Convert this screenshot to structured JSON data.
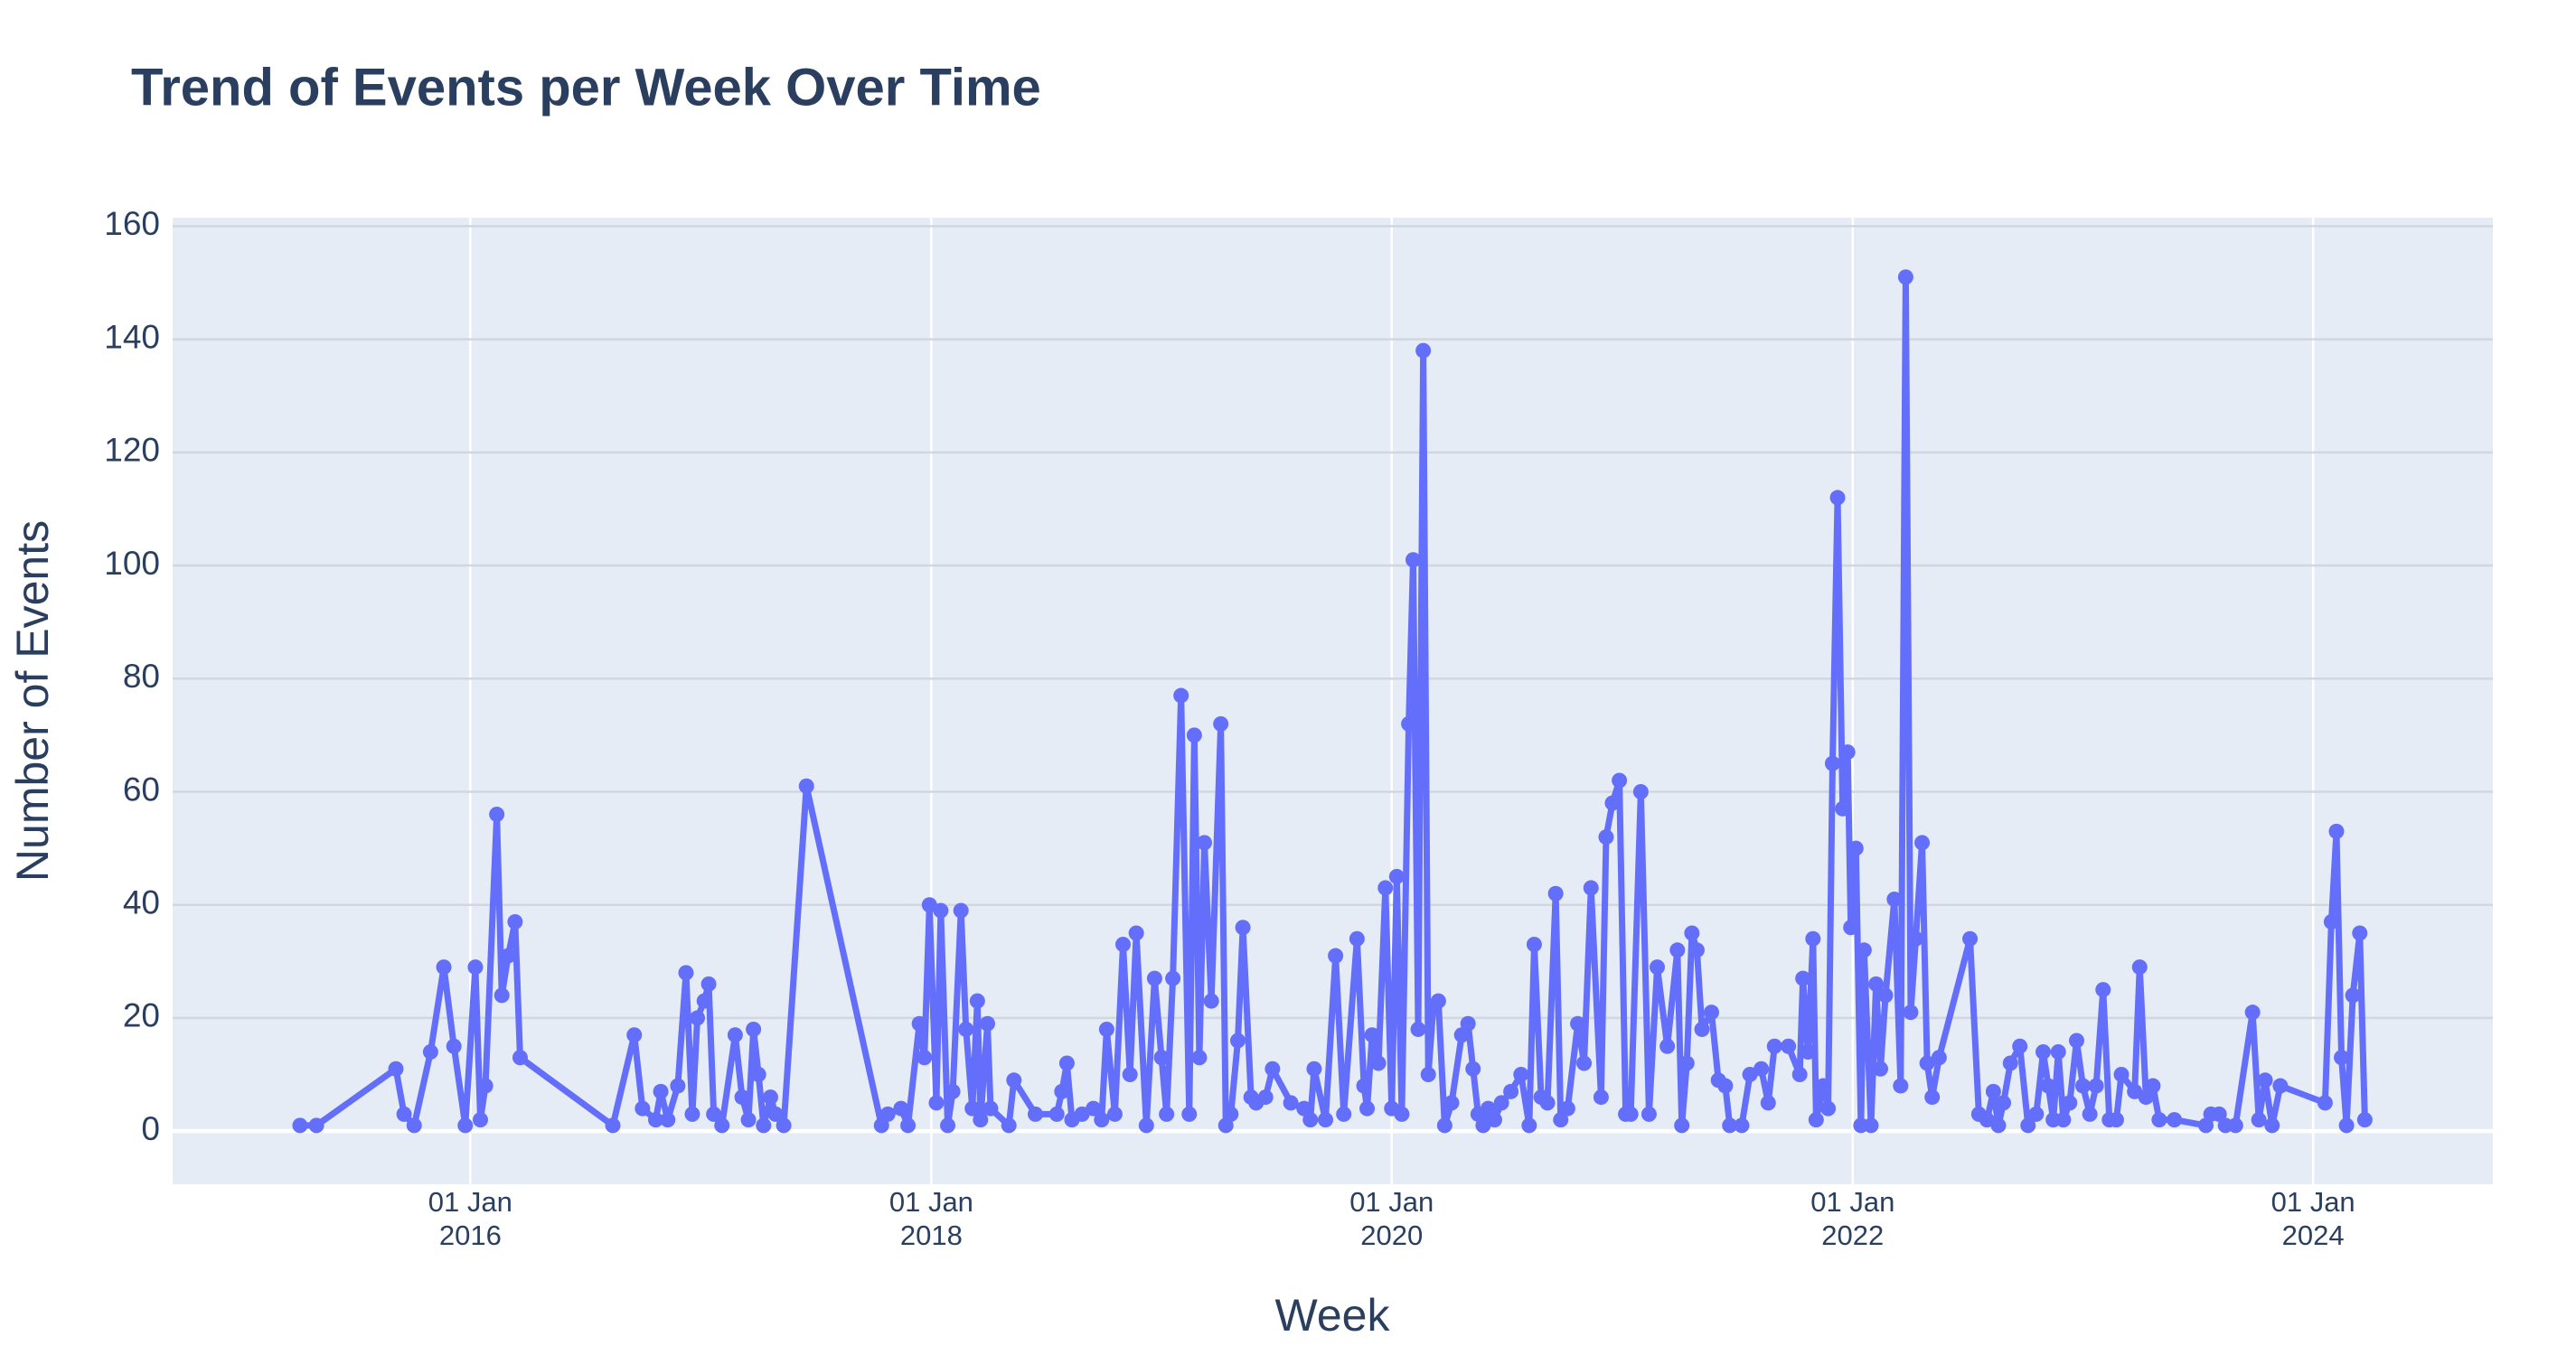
{
  "chart_data": {
    "type": "line",
    "title": "Trend of Events per Week Over Time",
    "x_label": "Week",
    "y_label": "Number of Events",
    "color": "#636efa",
    "markers": true,
    "grid": true,
    "xlim": [
      "2014-09-16",
      "2024-10-12"
    ],
    "ylim": [
      -9.4,
      161.5
    ],
    "xticks": [
      {
        "value": "2016-01-01",
        "label": "01 Jan 2016"
      },
      {
        "value": "2018-01-01",
        "label": "01 Jan 2018"
      },
      {
        "value": "2020-01-01",
        "label": "01 Jan 2020"
      },
      {
        "value": "2022-01-01",
        "label": "01 Jan 2022"
      },
      {
        "value": "2024-01-01",
        "label": "01 Jan 2024"
      }
    ],
    "yticks": [
      0,
      20,
      40,
      60,
      80,
      100,
      120,
      140,
      160
    ],
    "x": [
      "2015-04-06",
      "2015-05-02",
      "2015-09-05",
      "2015-09-18",
      "2015-10-04",
      "2015-10-30",
      "2015-11-20",
      "2015-12-06",
      "2015-12-24",
      "2016-01-09",
      "2016-01-17",
      "2016-01-25",
      "2016-02-12",
      "2016-02-20",
      "2016-03-01",
      "2016-03-12",
      "2016-03-20",
      "2016-08-14",
      "2016-09-17",
      "2016-09-30",
      "2016-10-21",
      "2016-10-29",
      "2016-11-09",
      "2016-11-25",
      "2016-12-08",
      "2016-12-18",
      "2016-12-26",
      "2017-01-06",
      "2017-01-13",
      "2017-01-21",
      "2017-02-03",
      "2017-02-24",
      "2017-03-07",
      "2017-03-17",
      "2017-03-25",
      "2017-04-02",
      "2017-04-10",
      "2017-04-21",
      "2017-04-29",
      "2017-05-12",
      "2017-06-17",
      "2017-10-14",
      "2017-10-24",
      "2017-11-14",
      "2017-11-25",
      "2017-12-13",
      "2017-12-21",
      "2017-12-29",
      "2018-01-09",
      "2018-01-16",
      "2018-01-27",
      "2018-02-04",
      "2018-02-17",
      "2018-02-25",
      "2018-03-07",
      "2018-03-15",
      "2018-03-20",
      "2018-03-31",
      "2018-04-05",
      "2018-05-04",
      "2018-05-12",
      "2018-06-15",
      "2018-07-19",
      "2018-07-27",
      "2018-08-04",
      "2018-08-12",
      "2018-08-28",
      "2018-09-15",
      "2018-09-28",
      "2018-10-06",
      "2018-10-19",
      "2018-11-01",
      "2018-11-12",
      "2018-11-22",
      "2018-12-08",
      "2018-12-21",
      "2019-01-01",
      "2019-01-09",
      "2019-01-19",
      "2019-02-01",
      "2019-02-14",
      "2019-02-22",
      "2019-03-02",
      "2019-03-10",
      "2019-03-21",
      "2019-04-05",
      "2019-04-13",
      "2019-04-21",
      "2019-05-02",
      "2019-05-10",
      "2019-05-23",
      "2019-05-31",
      "2019-06-15",
      "2019-06-26",
      "2019-07-25",
      "2019-08-15",
      "2019-08-25",
      "2019-08-31",
      "2019-09-18",
      "2019-10-04",
      "2019-10-17",
      "2019-11-07",
      "2019-11-18",
      "2019-11-23",
      "2019-12-01",
      "2019-12-11",
      "2019-12-22",
      "2020-01-01",
      "2020-01-09",
      "2020-01-17",
      "2020-01-28",
      "2020-02-04",
      "2020-02-12",
      "2020-02-20",
      "2020-02-28",
      "2020-03-07",
      "2020-03-15",
      "2020-03-25",
      "2020-04-05",
      "2020-04-21",
      "2020-05-01",
      "2020-05-09",
      "2020-05-17",
      "2020-05-25",
      "2020-06-02",
      "2020-06-12",
      "2020-06-23",
      "2020-07-08",
      "2020-07-24",
      "2020-08-06",
      "2020-08-14",
      "2020-08-25",
      "2020-09-04",
      "2020-09-17",
      "2020-09-25",
      "2020-10-06",
      "2020-10-22",
      "2020-11-01",
      "2020-11-12",
      "2020-11-28",
      "2020-12-06",
      "2020-12-16",
      "2020-12-27",
      "2021-01-06",
      "2021-01-14",
      "2021-01-30",
      "2021-02-12",
      "2021-02-25",
      "2021-03-13",
      "2021-03-29",
      "2021-04-05",
      "2021-04-13",
      "2021-04-21",
      "2021-04-29",
      "2021-05-07",
      "2021-05-22",
      "2021-06-02",
      "2021-06-13",
      "2021-06-20",
      "2021-07-09",
      "2021-07-22",
      "2021-08-09",
      "2021-08-20",
      "2021-08-30",
      "2021-09-21",
      "2021-10-09",
      "2021-10-14",
      "2021-10-22",
      "2021-10-30",
      "2021-11-04",
      "2021-11-15",
      "2021-11-23",
      "2021-11-30",
      "2021-12-08",
      "2021-12-16",
      "2021-12-24",
      "2021-12-29",
      "2022-01-06",
      "2022-01-14",
      "2022-01-19",
      "2022-01-30",
      "2022-02-07",
      "2022-02-14",
      "2022-02-22",
      "2022-03-08",
      "2022-03-18",
      "2022-03-26",
      "2022-04-03",
      "2022-04-11",
      "2022-04-21",
      "2022-04-29",
      "2022-05-07",
      "2022-05-18",
      "2022-07-06",
      "2022-07-20",
      "2022-08-02",
      "2022-08-12",
      "2022-08-20",
      "2022-08-28",
      "2022-09-08",
      "2022-09-23",
      "2022-10-06",
      "2022-10-19",
      "2022-10-30",
      "2022-11-07",
      "2022-11-15",
      "2022-11-23",
      "2022-12-01",
      "2022-12-11",
      "2022-12-22",
      "2023-01-01",
      "2023-01-12",
      "2023-01-22",
      "2023-02-02",
      "2023-02-12",
      "2023-02-23",
      "2023-03-03",
      "2023-03-24",
      "2023-04-01",
      "2023-04-11",
      "2023-04-22",
      "2023-05-02",
      "2023-05-26",
      "2023-07-15",
      "2023-07-23",
      "2023-08-05",
      "2023-08-15",
      "2023-08-31",
      "2023-09-27",
      "2023-10-07",
      "2023-10-17",
      "2023-10-28",
      "2023-11-10",
      "2024-01-20",
      "2024-01-30",
      "2024-02-07",
      "2024-02-15",
      "2024-02-23",
      "2024-03-04",
      "2024-03-15",
      "2024-03-23"
    ],
    "values": [
      1,
      1,
      11,
      3,
      1,
      14,
      29,
      15,
      1,
      29,
      2,
      8,
      56,
      24,
      31,
      37,
      13,
      1,
      17,
      4,
      2,
      7,
      2,
      8,
      28,
      3,
      20,
      23,
      26,
      3,
      1,
      17,
      6,
      2,
      18,
      10,
      1,
      6,
      3,
      1,
      61,
      1,
      3,
      4,
      1,
      19,
      13,
      40,
      5,
      39,
      1,
      7,
      39,
      18,
      4,
      23,
      2,
      19,
      4,
      1,
      9,
      3,
      3,
      7,
      12,
      2,
      3,
      4,
      2,
      18,
      3,
      33,
      10,
      35,
      1,
      27,
      13,
      3,
      27,
      77,
      3,
      70,
      13,
      51,
      23,
      72,
      1,
      3,
      16,
      36,
      6,
      5,
      6,
      11,
      5,
      4,
      2,
      11,
      2,
      31,
      3,
      34,
      8,
      4,
      17,
      12,
      43,
      4,
      45,
      3,
      72,
      101,
      18,
      138,
      10,
      22,
      23,
      1,
      5,
      17,
      19,
      11,
      3,
      1,
      4,
      2,
      5,
      7,
      10,
      1,
      33,
      6,
      5,
      42,
      2,
      4,
      19,
      12,
      43,
      6,
      52,
      58,
      62,
      3,
      3,
      60,
      3,
      29,
      15,
      32,
      1,
      12,
      35,
      32,
      18,
      21,
      9,
      8,
      1,
      1,
      10,
      11,
      5,
      15,
      15,
      10,
      27,
      14,
      34,
      2,
      8,
      4,
      65,
      112,
      57,
      67,
      36,
      50,
      1,
      32,
      1,
      26,
      11,
      24,
      41,
      8,
      151,
      21,
      34,
      51,
      12,
      6,
      13,
      34,
      3,
      2,
      7,
      1,
      5,
      12,
      15,
      1,
      3,
      14,
      8,
      2,
      14,
      2,
      5,
      16,
      8,
      3,
      8,
      25,
      2,
      2,
      10,
      7,
      29,
      6,
      8,
      2,
      2,
      1,
      3,
      3,
      1,
      1,
      21,
      2,
      9,
      1,
      8,
      5,
      37,
      53,
      13,
      1,
      24,
      35,
      2
    ]
  }
}
